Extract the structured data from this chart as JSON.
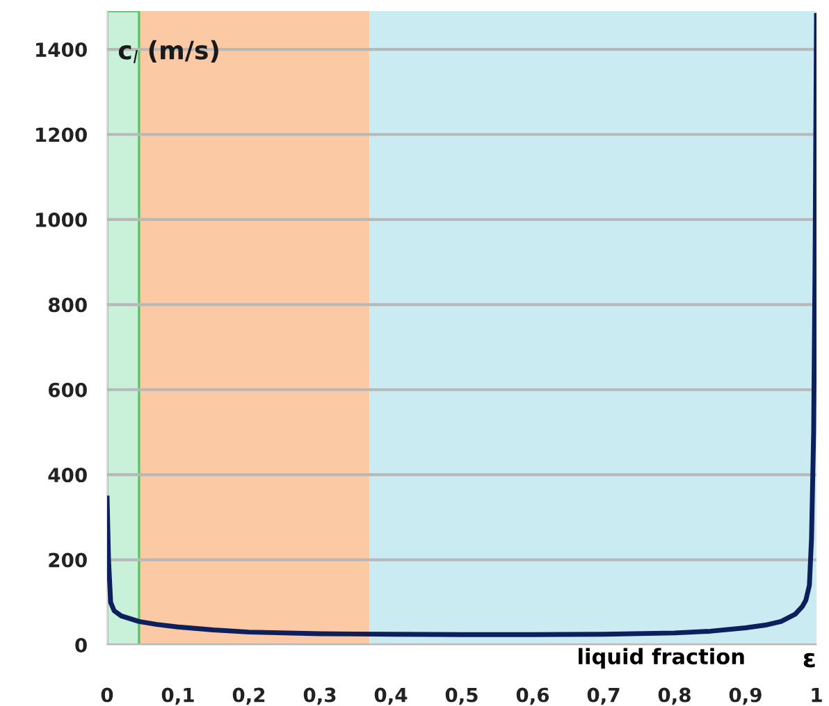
{
  "chart_data": {
    "type": "line",
    "xlabel": "liquid fraction",
    "ylabel": "c$_{l}$ (m/s)",
    "annotations": [
      "ε"
    ],
    "series": [
      {
        "color": "#0d1f5c",
        "x": [
          0,
          0.002,
          0.005,
          0.01,
          0.02,
          0.045,
          0.07,
          0.1,
          0.15,
          0.2,
          0.3,
          0.4,
          0.5,
          0.6,
          0.7,
          0.8,
          0.85,
          0.9,
          0.93,
          0.95,
          0.97,
          0.98,
          0.985,
          0.99,
          0.993,
          0.996,
          0.998,
          1.0
        ],
        "values": [
          345,
          200,
          100,
          80,
          68,
          55,
          48,
          42,
          35,
          30,
          26,
          25,
          24,
          24,
          25,
          28,
          32,
          40,
          47,
          55,
          72,
          90,
          105,
          140,
          250,
          500,
          900,
          1480
        ]
      }
    ],
    "bands": [
      {
        "axis": "x",
        "from": 0,
        "to": 0.045,
        "color": "#c9f0d8"
      },
      {
        "axis": "x",
        "from": 0.045,
        "to": 0.37,
        "color": "#fcc9a5"
      },
      {
        "axis": "x",
        "from": 0.37,
        "to": 1,
        "color": "#cbebf3"
      }
    ],
    "xlim": [
      0,
      1
    ],
    "ylim": [
      0,
      1490
    ],
    "xticks": [
      0,
      {
        "value": 0.1,
        "label": "0,1"
      },
      {
        "value": 0.2,
        "label": "0,2"
      },
      {
        "value": 0.3,
        "label": "0,3"
      },
      {
        "value": 0.4,
        "label": "0,4"
      },
      {
        "value": 0.5,
        "label": "0,5"
      },
      {
        "value": 0.6,
        "label": "0,6"
      },
      {
        "value": 0.7,
        "label": "0,7"
      },
      {
        "value": 0.8,
        "label": "0,8"
      },
      {
        "value": 0.9,
        "label": "0,9"
      },
      1
    ],
    "yticks": [
      0,
      200,
      400,
      600,
      800,
      1000,
      1200,
      1400
    ],
    "grid": "y",
    "legend": false,
    "marker": "none",
    "line_style": "solid"
  }
}
